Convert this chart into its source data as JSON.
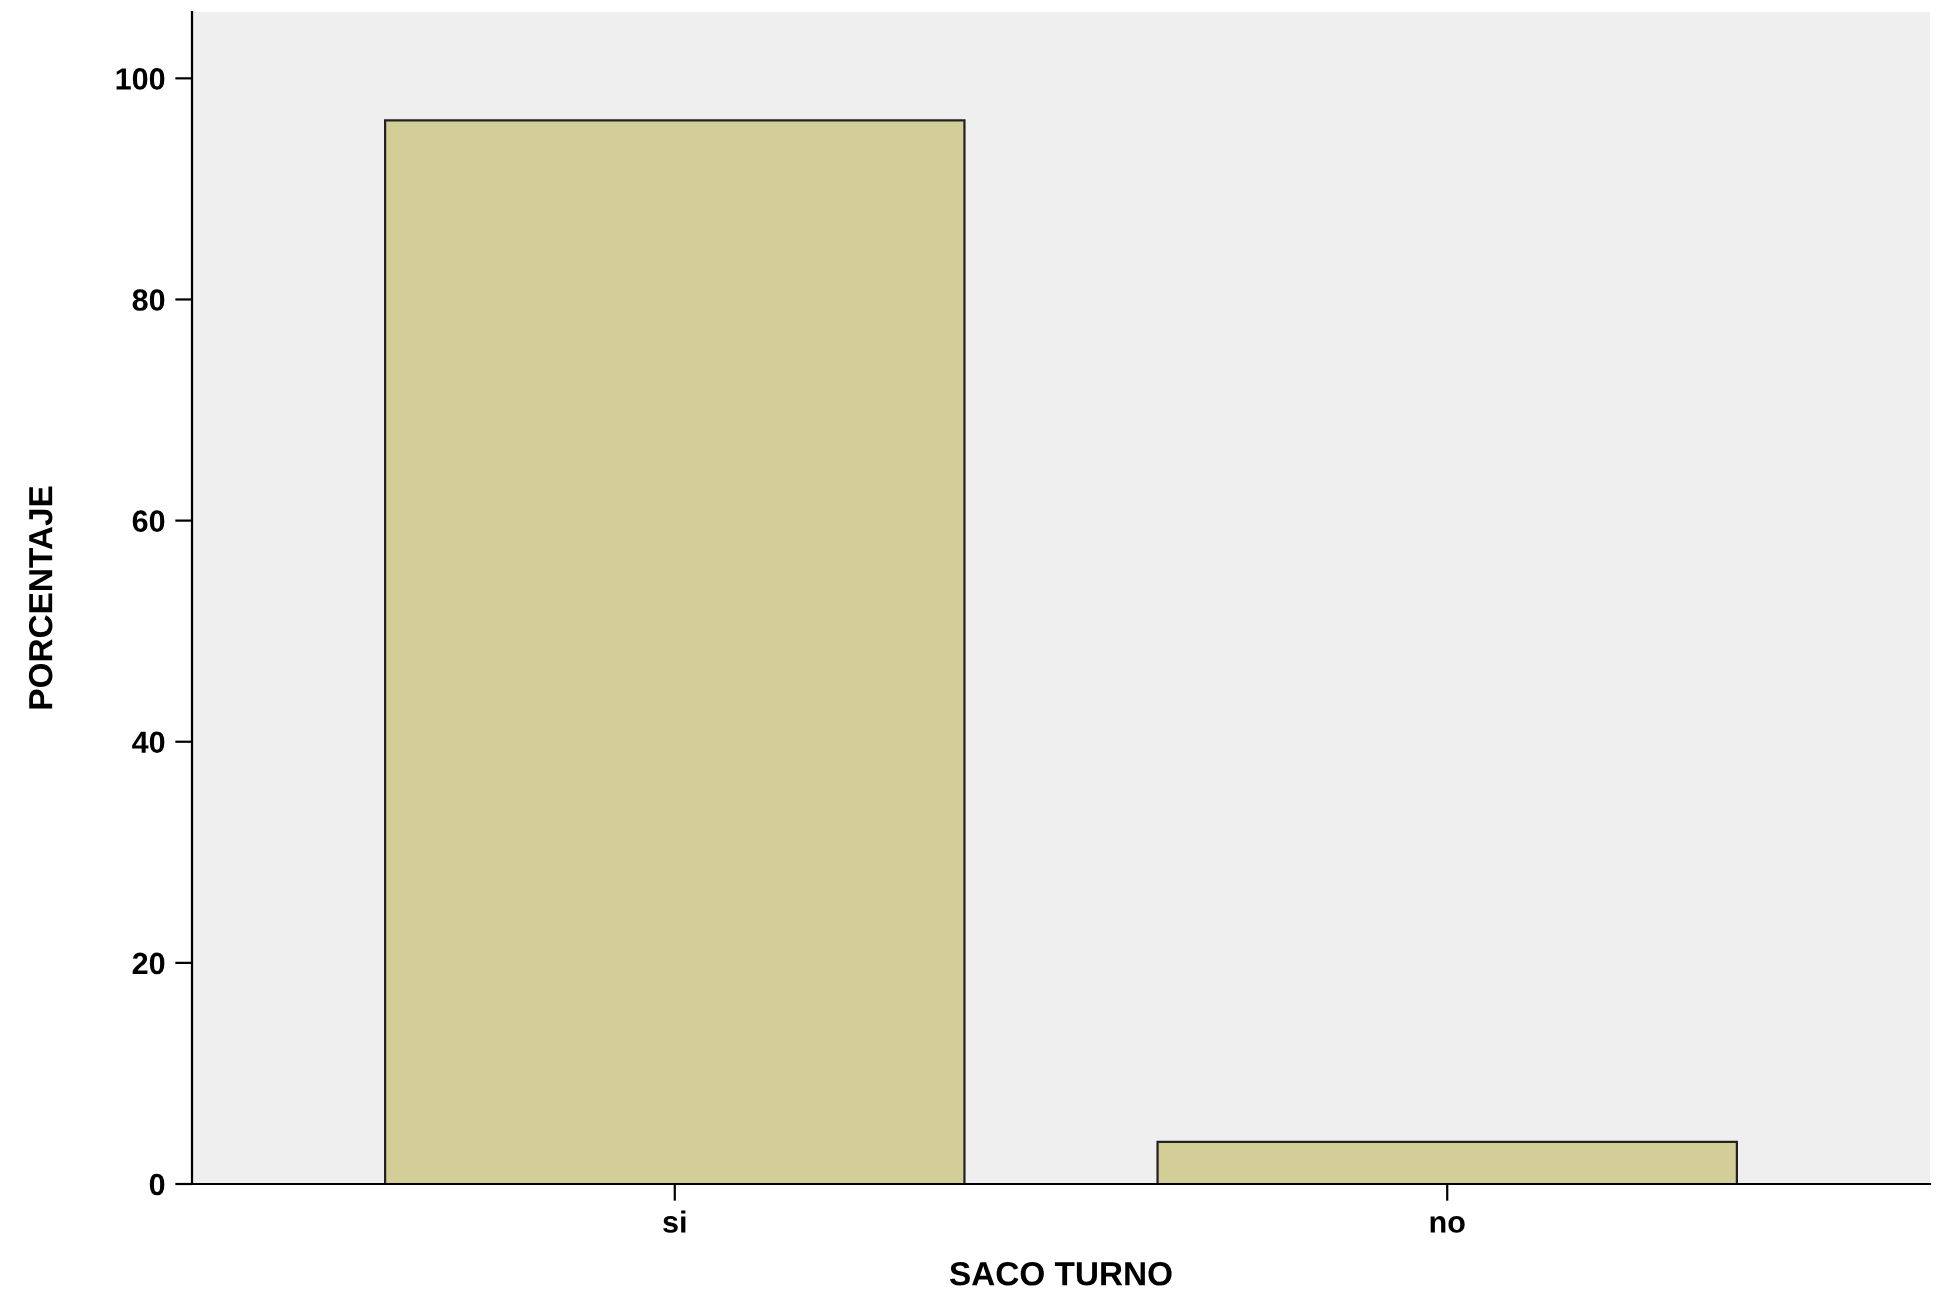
{
  "chart_data": {
    "type": "bar",
    "xlabel": "SACO TURNO",
    "ylabel": "PORCENTAJE",
    "categories": [
      "si",
      "no"
    ],
    "values": [
      96.2,
      3.8
    ],
    "color": "#d3ce98",
    "ylim": [
      0,
      106
    ],
    "yticks": [
      0,
      20,
      40,
      60,
      80,
      100
    ],
    "grid": false
  }
}
